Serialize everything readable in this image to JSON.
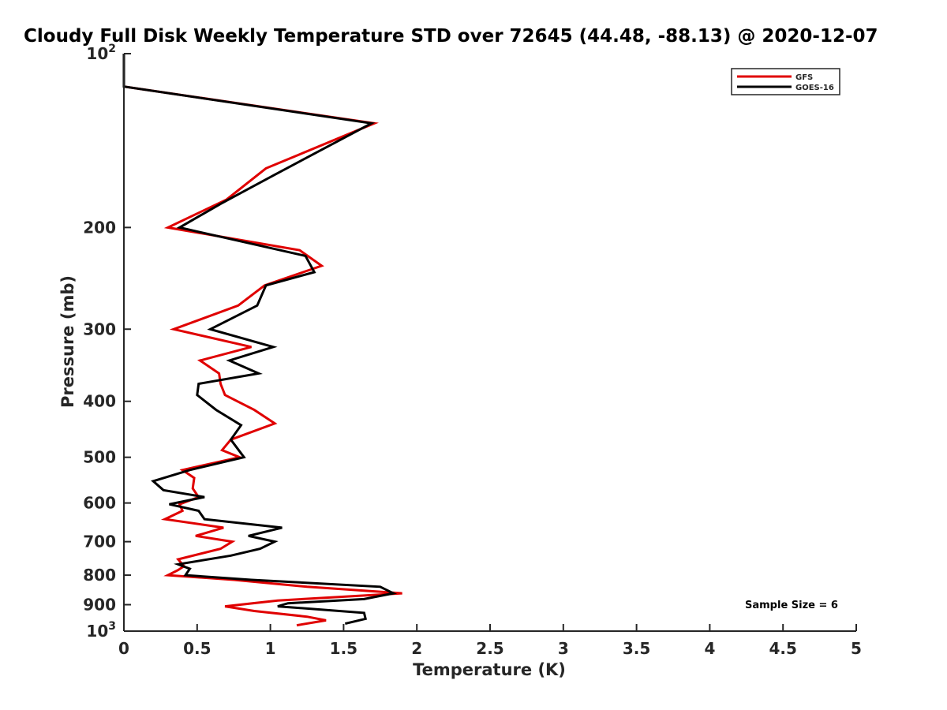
{
  "chart_data": {
    "type": "line",
    "title": "Cloudy Full Disk Weekly Temperature STD over 72645 (44.48, -88.13) @ 2020-12-07",
    "xlabel": "Temperature (K)",
    "ylabel": "Pressure (mb)",
    "xlim": [
      0,
      5
    ],
    "ylim": [
      100,
      1000
    ],
    "y_scale": "log",
    "y_reversed": true,
    "x_ticks": [
      "0",
      "0.5",
      "1",
      "1.5",
      "2",
      "2.5",
      "3",
      "3.5",
      "4",
      "4.5",
      "5"
    ],
    "y_ticks": [
      {
        "value": 100,
        "base": "10",
        "exp": "2"
      },
      {
        "value": 200,
        "label": "200"
      },
      {
        "value": 300,
        "label": "300"
      },
      {
        "value": 400,
        "label": "400"
      },
      {
        "value": 500,
        "label": "500"
      },
      {
        "value": 600,
        "label": "600"
      },
      {
        "value": 700,
        "label": "700"
      },
      {
        "value": 800,
        "label": "800"
      },
      {
        "value": 900,
        "label": "900"
      },
      {
        "value": 1000,
        "base": "10",
        "exp": "3"
      }
    ],
    "grid": false,
    "legend_position": "top-right",
    "annotation": "Sample Size = 6",
    "series": [
      {
        "name": "GFS",
        "color": "#e00000",
        "points": [
          [
            0,
            100
          ],
          [
            0,
            114
          ],
          [
            1.71,
            132
          ],
          [
            0.97,
            158
          ],
          [
            0.7,
            179
          ],
          [
            0.3,
            200
          ],
          [
            1.2,
            219
          ],
          [
            1.35,
            233
          ],
          [
            0.96,
            252
          ],
          [
            0.78,
            273
          ],
          [
            0.34,
            300
          ],
          [
            0.87,
            322
          ],
          [
            0.52,
            340
          ],
          [
            0.65,
            358
          ],
          [
            0.66,
            373
          ],
          [
            0.69,
            390
          ],
          [
            0.89,
            414
          ],
          [
            1.03,
            437
          ],
          [
            0.73,
            466
          ],
          [
            0.67,
            486
          ],
          [
            0.79,
            500
          ],
          [
            0.4,
            526
          ],
          [
            0.48,
            543
          ],
          [
            0.47,
            566
          ],
          [
            0.51,
            586
          ],
          [
            0.38,
            603
          ],
          [
            0.4,
            619
          ],
          [
            0.28,
            640
          ],
          [
            0.68,
            662
          ],
          [
            0.49,
            684
          ],
          [
            0.74,
            700
          ],
          [
            0.66,
            720
          ],
          [
            0.37,
            751
          ],
          [
            0.41,
            772
          ],
          [
            0.37,
            784
          ],
          [
            0.3,
            800
          ],
          [
            0.75,
            815
          ],
          [
            1.25,
            838
          ],
          [
            1.9,
            860
          ],
          [
            1.05,
            885
          ],
          [
            0.69,
            906
          ],
          [
            0.89,
            923
          ],
          [
            1.25,
            944
          ],
          [
            1.38,
            958
          ],
          [
            1.18,
            977
          ]
        ]
      },
      {
        "name": "GOES-16",
        "color": "#000000",
        "points": [
          [
            0,
            100
          ],
          [
            0,
            114
          ],
          [
            1.69,
            132
          ],
          [
            1.03,
            162
          ],
          [
            0.66,
            182
          ],
          [
            0.38,
            200
          ],
          [
            1.24,
            224
          ],
          [
            1.3,
            239
          ],
          [
            0.97,
            252
          ],
          [
            0.91,
            273
          ],
          [
            0.59,
            300
          ],
          [
            1.02,
            322
          ],
          [
            0.72,
            340
          ],
          [
            0.92,
            358
          ],
          [
            0.51,
            373
          ],
          [
            0.5,
            390
          ],
          [
            0.63,
            414
          ],
          [
            0.8,
            440
          ],
          [
            0.73,
            466
          ],
          [
            0.82,
            500
          ],
          [
            0.45,
            526
          ],
          [
            0.2,
            550
          ],
          [
            0.27,
            570
          ],
          [
            0.55,
            586
          ],
          [
            0.31,
            603
          ],
          [
            0.51,
            619
          ],
          [
            0.55,
            640
          ],
          [
            1.08,
            662
          ],
          [
            0.85,
            684
          ],
          [
            1.03,
            700
          ],
          [
            0.93,
            720
          ],
          [
            0.73,
            740
          ],
          [
            0.37,
            766
          ],
          [
            0.45,
            780
          ],
          [
            0.42,
            800
          ],
          [
            0.87,
            815
          ],
          [
            1.75,
            838
          ],
          [
            1.84,
            860
          ],
          [
            1.64,
            880
          ],
          [
            1.12,
            895
          ],
          [
            1.05,
            906
          ],
          [
            1.64,
            930
          ],
          [
            1.65,
            952
          ],
          [
            1.51,
            971
          ]
        ]
      }
    ]
  }
}
